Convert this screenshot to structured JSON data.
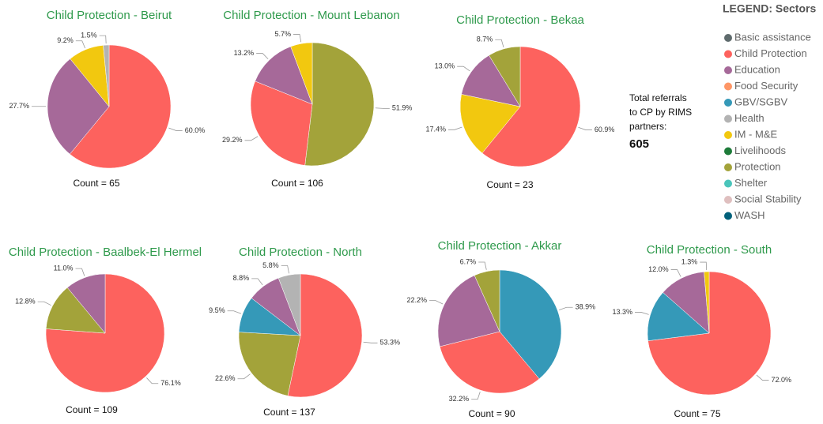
{
  "chart_data": [
    {
      "type": "pie",
      "title": "Child Protection - Beirut",
      "annotation": "Count = 65",
      "categories": [
        "Child Protection",
        "Education",
        "IM - M&E",
        "Health"
      ],
      "values": [
        60.0,
        27.7,
        9.2,
        1.5
      ],
      "value_labels": [
        "60.0%",
        "27.7%",
        "9.2%",
        "1.5%"
      ]
    },
    {
      "type": "pie",
      "title": "Child Protection - Mount Lebanon",
      "annotation": "Count = 106",
      "categories": [
        "Protection",
        "Child Protection",
        "Education",
        "IM - M&E"
      ],
      "values": [
        51.9,
        29.2,
        13.2,
        5.7
      ],
      "value_labels": [
        "51.9%",
        "29.2%",
        "13.2%",
        "5.7%"
      ]
    },
    {
      "type": "pie",
      "title": "Child Protection - Bekaa",
      "annotation": "Count = 23",
      "categories": [
        "Child Protection",
        "IM - M&E",
        "Education",
        "Protection"
      ],
      "values": [
        60.9,
        17.4,
        13.0,
        8.7
      ],
      "value_labels": [
        "60.9%",
        "17.4%",
        "13.0%",
        "8.7%"
      ]
    },
    {
      "type": "pie",
      "title": "Child Protection - Baalbek-El Hermel",
      "annotation": "Count = 109",
      "categories": [
        "Child Protection",
        "Protection",
        "Education"
      ],
      "values": [
        76.1,
        12.8,
        11.0
      ],
      "value_labels": [
        "76.1%",
        "12.8%",
        "11.0%"
      ]
    },
    {
      "type": "pie",
      "title": "Child Protection - North",
      "annotation": "Count = 137",
      "categories": [
        "Child Protection",
        "Protection",
        "GBV/SGBV",
        "Education",
        "Health"
      ],
      "values": [
        53.3,
        22.6,
        9.5,
        8.8,
        5.8
      ],
      "value_labels": [
        "53.3%",
        "22.6%",
        "9.5%",
        "8.8%",
        "5.8%"
      ]
    },
    {
      "type": "pie",
      "title": "Child Protection - Akkar",
      "annotation": "Count = 90",
      "categories": [
        "GBV/SGBV",
        "Child Protection",
        "Education",
        "Protection"
      ],
      "values": [
        38.9,
        32.2,
        22.2,
        6.7
      ],
      "value_labels": [
        "38.9%",
        "32.2%",
        "22.2%",
        "6.7%"
      ]
    },
    {
      "type": "pie",
      "title": "Child Protection - South",
      "annotation": "Count = 75",
      "categories": [
        "Child Protection",
        "GBV/SGBV",
        "Education",
        "IM - M&E"
      ],
      "values": [
        72.0,
        13.3,
        12.0,
        1.3
      ],
      "value_labels": [
        "72.0%",
        "13.3%",
        "12.0%",
        "1.3%"
      ]
    }
  ],
  "legend": {
    "title": "LEGEND: Sectors",
    "items": [
      {
        "name": "Basic assistance",
        "color": "#5f6b6d"
      },
      {
        "name": "Child Protection",
        "color": "#fd625e"
      },
      {
        "name": "Education",
        "color": "#a66999"
      },
      {
        "name": "Food Security",
        "color": "#fe9666"
      },
      {
        "name": "GBV/SGBV",
        "color": "#3599b8"
      },
      {
        "name": "Health",
        "color": "#b3b3b3"
      },
      {
        "name": "IM - M&E",
        "color": "#f2c80f"
      },
      {
        "name": "Livelihoods",
        "color": "#1e7b3a"
      },
      {
        "name": "Protection",
        "color": "#a3a33a"
      },
      {
        "name": "Shelter",
        "color": "#4ac5bb"
      },
      {
        "name": "Social Stability",
        "color": "#dfbfbf"
      },
      {
        "name": "WASH",
        "color": "#01607a"
      }
    ]
  },
  "note": {
    "lines": [
      "Total referrals",
      "to CP by RIMS",
      "partners:"
    ],
    "value": "605"
  }
}
